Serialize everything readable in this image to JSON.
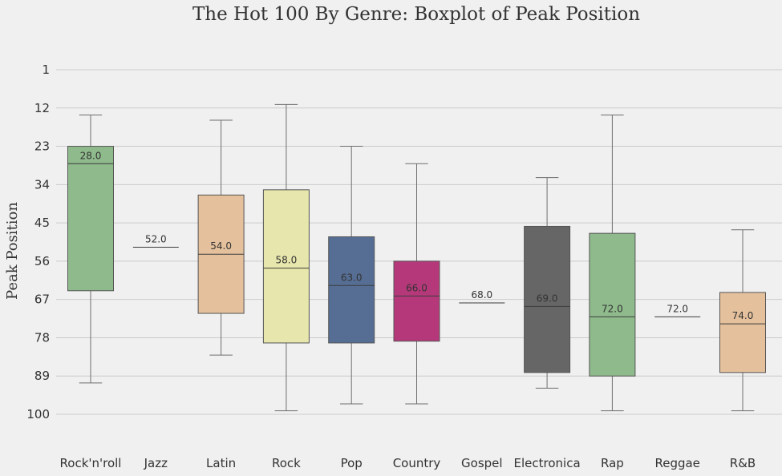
{
  "chart_data": {
    "type": "boxplot",
    "title": "The Hot 100 By Genre: Boxplot of Peak Position",
    "xlabel": "",
    "ylabel": "Peak Position",
    "y_inverted": true,
    "ylim": [
      1,
      100
    ],
    "yticks": [
      "1",
      "12",
      "23",
      "34",
      "45",
      "56",
      "67",
      "78",
      "89",
      "100"
    ],
    "grid": "horizontal",
    "categories": [
      "Rock'n'roll",
      "Jazz",
      "Latin",
      "Rock",
      "Pop",
      "Country",
      "Gospel",
      "Electronica",
      "Rap",
      "Reggae",
      "R&B"
    ],
    "boxes": [
      {
        "category": "Rock'n'roll",
        "whisker_low": 14,
        "q1": 23,
        "median": 28,
        "q3": 64.5,
        "whisker_high": 91,
        "median_label": "28.0",
        "color": "#8fba8c"
      },
      {
        "category": "Jazz",
        "whisker_low": 52,
        "q1": 52,
        "median": 52,
        "q3": 52,
        "whisker_high": 52,
        "median_label": "52.0",
        "color": "#e4c19c"
      },
      {
        "category": "Latin",
        "whisker_low": 15.5,
        "q1": 37,
        "median": 54,
        "q3": 71,
        "whisker_high": 83,
        "median_label": "54.0",
        "color": "#e4c19c"
      },
      {
        "category": "Rock",
        "whisker_low": 11,
        "q1": 35.5,
        "median": 58,
        "q3": 79.5,
        "whisker_high": 99,
        "median_label": "58.0",
        "color": "#e7e6ac"
      },
      {
        "category": "Pop",
        "whisker_low": 23,
        "q1": 49,
        "median": 63,
        "q3": 79.5,
        "whisker_high": 97,
        "median_label": "63.0",
        "color": "#566e94"
      },
      {
        "category": "Country",
        "whisker_low": 28,
        "q1": 56,
        "median": 66,
        "q3": 79,
        "whisker_high": 97,
        "median_label": "66.0",
        "color": "#b5397a"
      },
      {
        "category": "Gospel",
        "whisker_low": 68,
        "q1": 68,
        "median": 68,
        "q3": 68,
        "whisker_high": 68,
        "median_label": "68.0",
        "color": "#e4c19c"
      },
      {
        "category": "Electronica",
        "whisker_low": 32,
        "q1": 46,
        "median": 69,
        "q3": 88,
        "whisker_high": 92.5,
        "median_label": "69.0",
        "color": "#666666"
      },
      {
        "category": "Rap",
        "whisker_low": 14,
        "q1": 48,
        "median": 72,
        "q3": 89,
        "whisker_high": 99,
        "median_label": "72.0",
        "color": "#8fba8c"
      },
      {
        "category": "Reggae",
        "whisker_low": 72,
        "q1": 72,
        "median": 72,
        "q3": 72,
        "whisker_high": 72,
        "median_label": "72.0",
        "color": "#e4c19c"
      },
      {
        "category": "R&B",
        "whisker_low": 47,
        "q1": 65,
        "median": 74,
        "q3": 88,
        "whisker_high": 99,
        "median_label": "74.0",
        "color": "#e4c19c"
      }
    ]
  }
}
